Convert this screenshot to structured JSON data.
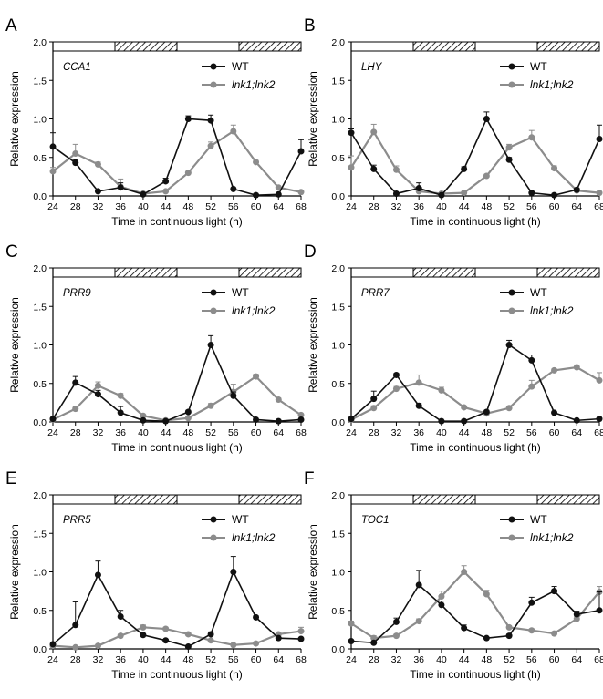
{
  "figure": {
    "x_axis_label": "Time in continuous light (h)",
    "y_axis_label": "Relative expression",
    "legend": [
      "WT",
      "lnk1;lnk2"
    ]
  },
  "colors": {
    "wt": "#111111",
    "mutant": "#8c8c8c",
    "axis": "#000000"
  },
  "chart_data": [
    {
      "type": "line",
      "panel": "A",
      "gene": "CCA1",
      "x": [
        24,
        28,
        32,
        36,
        40,
        44,
        48,
        52,
        56,
        60,
        64,
        68
      ],
      "xlabel": "Time in continuous light (h)",
      "ylabel": "Relative expression",
      "ylim": [
        0,
        2.0
      ],
      "yticks": [
        "0.0",
        "0.5",
        "1.0",
        "1.5",
        "2.0"
      ],
      "light_dark_bar": [
        "light",
        "dark",
        "light",
        "dark"
      ],
      "series": [
        {
          "name": "WT",
          "values": [
            0.64,
            0.43,
            0.06,
            0.11,
            0.02,
            0.19,
            1.0,
            0.98,
            0.09,
            0.01,
            0.02,
            0.58
          ],
          "err": [
            0.18,
            0.04,
            0.01,
            0.06,
            0.01,
            0.04,
            0.04,
            0.07,
            0.01,
            0.01,
            0.01,
            0.15
          ]
        },
        {
          "name": "lnk1;lnk2",
          "values": [
            0.32,
            0.55,
            0.41,
            0.12,
            0.03,
            0.06,
            0.3,
            0.65,
            0.84,
            0.44,
            0.11,
            0.05
          ],
          "err": [
            0.05,
            0.12,
            0.03,
            0.1,
            0.01,
            0.01,
            0.02,
            0.05,
            0.08,
            0.02,
            0.01,
            0.01
          ]
        }
      ]
    },
    {
      "type": "line",
      "panel": "B",
      "gene": "LHY",
      "x": [
        24,
        28,
        32,
        36,
        40,
        44,
        48,
        52,
        56,
        60,
        64,
        68
      ],
      "xlabel": "Time in continuous light (h)",
      "ylabel": "Relative expression",
      "ylim": [
        0,
        2.0
      ],
      "yticks": [
        "0.0",
        "0.5",
        "1.0",
        "1.5",
        "2.0"
      ],
      "light_dark_bar": [
        "light",
        "dark",
        "light",
        "dark"
      ],
      "series": [
        {
          "name": "WT",
          "values": [
            0.82,
            0.35,
            0.03,
            0.1,
            0.01,
            0.35,
            1.0,
            0.47,
            0.04,
            0.01,
            0.08,
            0.74
          ],
          "err": [
            0.05,
            0.05,
            0.01,
            0.07,
            0.01,
            0.03,
            0.09,
            0.03,
            0.01,
            0.01,
            0.02,
            0.18
          ]
        },
        {
          "name": "lnk1;lnk2",
          "values": [
            0.37,
            0.83,
            0.34,
            0.06,
            0.03,
            0.04,
            0.26,
            0.63,
            0.76,
            0.36,
            0.07,
            0.04
          ],
          "err": [
            0.15,
            0.1,
            0.05,
            0.02,
            0.01,
            0.01,
            0.02,
            0.04,
            0.09,
            0.03,
            0.01,
            0.01
          ]
        }
      ]
    },
    {
      "type": "line",
      "panel": "C",
      "gene": "PRR9",
      "x": [
        24,
        28,
        32,
        36,
        40,
        44,
        48,
        52,
        56,
        60,
        64,
        68
      ],
      "xlabel": "Time in continuous light (h)",
      "ylabel": "Relative expression",
      "ylim": [
        0,
        2.0
      ],
      "yticks": [
        "0.0",
        "0.5",
        "1.0",
        "1.5",
        "2.0"
      ],
      "light_dark_bar": [
        "light",
        "dark",
        "light",
        "dark"
      ],
      "series": [
        {
          "name": "WT",
          "values": [
            0.04,
            0.51,
            0.36,
            0.12,
            0.02,
            0.01,
            0.13,
            1.0,
            0.34,
            0.03,
            0.01,
            0.03
          ],
          "err": [
            0.01,
            0.08,
            0.05,
            0.08,
            0.01,
            0.01,
            0.02,
            0.12,
            0.05,
            0.01,
            0.01,
            0.01
          ]
        },
        {
          "name": "lnk1;lnk2",
          "values": [
            0.03,
            0.17,
            0.47,
            0.34,
            0.08,
            0.02,
            0.05,
            0.21,
            0.39,
            0.59,
            0.29,
            0.09
          ],
          "err": [
            0.01,
            0.03,
            0.05,
            0.03,
            0.01,
            0.01,
            0.01,
            0.03,
            0.1,
            0.03,
            0.02,
            0.01
          ]
        }
      ]
    },
    {
      "type": "line",
      "panel": "D",
      "gene": "PRR7",
      "x": [
        24,
        28,
        32,
        36,
        40,
        44,
        48,
        52,
        56,
        60,
        64,
        68
      ],
      "xlabel": "Time in continuous light (h)",
      "ylabel": "Relative expression",
      "ylim": [
        0,
        2.0
      ],
      "yticks": [
        "0.0",
        "0.5",
        "1.0",
        "1.5",
        "2.0"
      ],
      "light_dark_bar": [
        "light",
        "dark",
        "light",
        "dark"
      ],
      "series": [
        {
          "name": "WT",
          "values": [
            0.04,
            0.3,
            0.61,
            0.21,
            0.01,
            0.01,
            0.13,
            1.0,
            0.8,
            0.12,
            0.02,
            0.04
          ],
          "err": [
            0.01,
            0.1,
            0.02,
            0.03,
            0.01,
            0.01,
            0.02,
            0.06,
            0.07,
            0.01,
            0.01,
            0.01
          ]
        },
        {
          "name": "lnk1;lnk2",
          "values": [
            0.03,
            0.18,
            0.43,
            0.51,
            0.41,
            0.19,
            0.11,
            0.18,
            0.46,
            0.67,
            0.71,
            0.54
          ],
          "err": [
            0.01,
            0.03,
            0.03,
            0.1,
            0.04,
            0.01,
            0.01,
            0.01,
            0.08,
            0.02,
            0.03,
            0.1
          ]
        }
      ]
    },
    {
      "type": "line",
      "panel": "E",
      "gene": "PRR5",
      "x": [
        24,
        28,
        32,
        36,
        40,
        44,
        48,
        52,
        56,
        60,
        64,
        68
      ],
      "xlabel": "Time in continuous light (h)",
      "ylabel": "Relative expression",
      "ylim": [
        0,
        2.0
      ],
      "yticks": [
        "0.0",
        "0.5",
        "1.0",
        "1.5",
        "2.0"
      ],
      "light_dark_bar": [
        "light",
        "dark",
        "light",
        "dark"
      ],
      "series": [
        {
          "name": "WT",
          "values": [
            0.06,
            0.31,
            0.96,
            0.42,
            0.18,
            0.11,
            0.03,
            0.19,
            1.0,
            0.41,
            0.14,
            0.13
          ],
          "err": [
            0.01,
            0.3,
            0.18,
            0.08,
            0.02,
            0.01,
            0.01,
            0.03,
            0.2,
            0.02,
            0.01,
            0.01
          ]
        },
        {
          "name": "lnk1;lnk2",
          "values": [
            0.04,
            0.02,
            0.04,
            0.17,
            0.28,
            0.26,
            0.19,
            0.11,
            0.05,
            0.07,
            0.19,
            0.23
          ],
          "err": [
            0.01,
            0.01,
            0.01,
            0.02,
            0.03,
            0.02,
            0.02,
            0.01,
            0.01,
            0.01,
            0.02,
            0.05
          ]
        }
      ]
    },
    {
      "type": "line",
      "panel": "F",
      "gene": "TOC1",
      "x": [
        24,
        28,
        32,
        36,
        40,
        44,
        48,
        52,
        56,
        60,
        64,
        68
      ],
      "xlabel": "Time in continuous light (h)",
      "ylabel": "Relative expression",
      "ylim": [
        0,
        2.0
      ],
      "yticks": [
        "0.0",
        "0.5",
        "1.0",
        "1.5",
        "2.0"
      ],
      "light_dark_bar": [
        "light",
        "dark",
        "light",
        "dark"
      ],
      "series": [
        {
          "name": "WT",
          "values": [
            0.1,
            0.08,
            0.35,
            0.83,
            0.57,
            0.27,
            0.14,
            0.17,
            0.6,
            0.75,
            0.45,
            0.5
          ],
          "err": [
            0.01,
            0.01,
            0.05,
            0.19,
            0.05,
            0.04,
            0.01,
            0.02,
            0.07,
            0.06,
            0.04,
            0.24
          ]
        },
        {
          "name": "lnk1;lnk2",
          "values": [
            0.33,
            0.14,
            0.17,
            0.36,
            0.68,
            1.0,
            0.71,
            0.28,
            0.24,
            0.2,
            0.39,
            0.74
          ],
          "err": [
            0.03,
            0.03,
            0.02,
            0.03,
            0.07,
            0.08,
            0.05,
            0.02,
            0.02,
            0.02,
            0.03,
            0.07
          ]
        }
      ]
    }
  ]
}
